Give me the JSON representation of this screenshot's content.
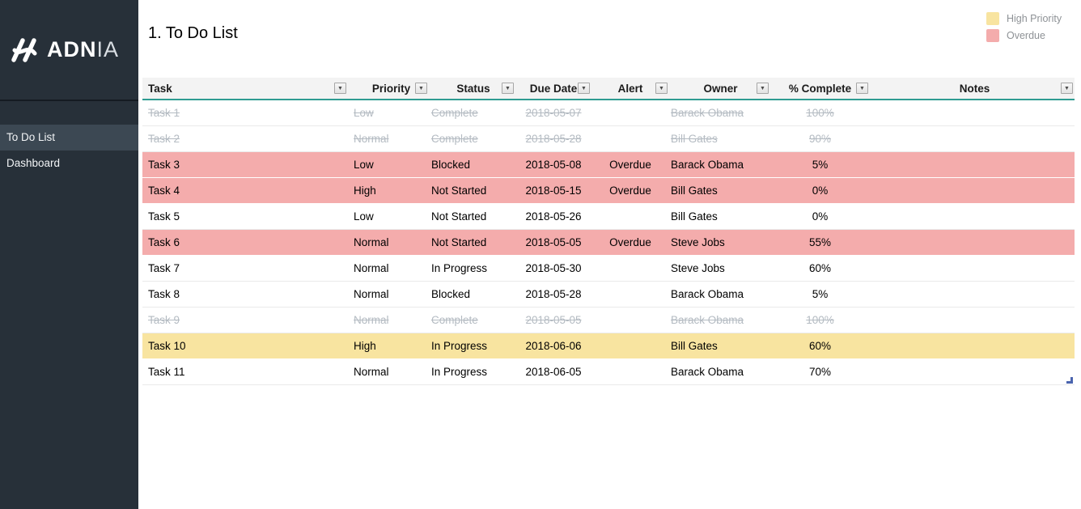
{
  "sidebar": {
    "logo_text_main": "ADN",
    "logo_text_accent": "IA",
    "items": [
      {
        "label": "To Do List",
        "active": true
      },
      {
        "label": "Dashboard",
        "active": false
      }
    ]
  },
  "header": {
    "title": "1. To Do List",
    "legend": [
      {
        "label": "High Priority",
        "color": "#F8E4A0"
      },
      {
        "label": "Overdue",
        "color": "#F4ACAC"
      }
    ]
  },
  "colors": {
    "sidebar_bg": "#273039",
    "sidebar_active": "#3C4853",
    "header_underline_teal": "#2E9C92",
    "high_priority_row": "#F8E4A0",
    "overdue_row": "#F4ACAC",
    "completed_text": "#B4BBC2",
    "resize_handle_blue": "#4A64AE"
  },
  "table": {
    "columns": [
      {
        "key": "task",
        "label": "Task",
        "align": "left"
      },
      {
        "key": "priority",
        "label": "Priority",
        "align": "center"
      },
      {
        "key": "status",
        "label": "Status",
        "align": "center"
      },
      {
        "key": "due_date",
        "label": "Due Date",
        "align": "center"
      },
      {
        "key": "alert",
        "label": "Alert",
        "align": "center"
      },
      {
        "key": "owner",
        "label": "Owner",
        "align": "center"
      },
      {
        "key": "complete",
        "label": "% Complete",
        "align": "center"
      },
      {
        "key": "notes",
        "label": "Notes",
        "align": "center"
      }
    ],
    "body_align": [
      "left",
      "left",
      "left",
      "center",
      "center",
      "left",
      "center",
      "left"
    ],
    "rows": [
      {
        "task": "Task 1",
        "priority": "Low",
        "status": "Complete",
        "due_date": "2018-05-07",
        "alert": "",
        "owner": "Barack Obama",
        "complete": "100%",
        "notes": "",
        "style": "done"
      },
      {
        "task": "Task 2",
        "priority": "Normal",
        "status": "Complete",
        "due_date": "2018-05-28",
        "alert": "",
        "owner": "Bill Gates",
        "complete": "90%",
        "notes": "",
        "style": "done"
      },
      {
        "task": "Task 3",
        "priority": "Low",
        "status": "Blocked",
        "due_date": "2018-05-08",
        "alert": "Overdue",
        "owner": "Barack Obama",
        "complete": "5%",
        "notes": "",
        "style": "overdue"
      },
      {
        "task": "Task 4",
        "priority": "High",
        "status": "Not Started",
        "due_date": "2018-05-15",
        "alert": "Overdue",
        "owner": "Bill Gates",
        "complete": "0%",
        "notes": "",
        "style": "overdue"
      },
      {
        "task": "Task 5",
        "priority": "Low",
        "status": "Not Started",
        "due_date": "2018-05-26",
        "alert": "",
        "owner": "Bill Gates",
        "complete": "0%",
        "notes": "",
        "style": "normal"
      },
      {
        "task": "Task 6",
        "priority": "Normal",
        "status": "Not Started",
        "due_date": "2018-05-05",
        "alert": "Overdue",
        "owner": "Steve Jobs",
        "complete": "55%",
        "notes": "",
        "style": "overdue"
      },
      {
        "task": "Task 7",
        "priority": "Normal",
        "status": "In Progress",
        "due_date": "2018-05-30",
        "alert": "",
        "owner": "Steve Jobs",
        "complete": "60%",
        "notes": "",
        "style": "normal"
      },
      {
        "task": "Task 8",
        "priority": "Normal",
        "status": "Blocked",
        "due_date": "2018-05-28",
        "alert": "",
        "owner": "Barack Obama",
        "complete": "5%",
        "notes": "",
        "style": "normal"
      },
      {
        "task": "Task 9",
        "priority": "Normal",
        "status": "Complete",
        "due_date": "2018-05-05",
        "alert": "",
        "owner": "Barack Obama",
        "complete": "100%",
        "notes": "",
        "style": "done"
      },
      {
        "task": "Task 10",
        "priority": "High",
        "status": "In Progress",
        "due_date": "2018-06-06",
        "alert": "",
        "owner": "Bill Gates",
        "complete": "60%",
        "notes": "",
        "style": "high"
      },
      {
        "task": "Task 11",
        "priority": "Normal",
        "status": "In Progress",
        "due_date": "2018-06-05",
        "alert": "",
        "owner": "Barack Obama",
        "complete": "70%",
        "notes": "",
        "style": "normal"
      }
    ]
  }
}
